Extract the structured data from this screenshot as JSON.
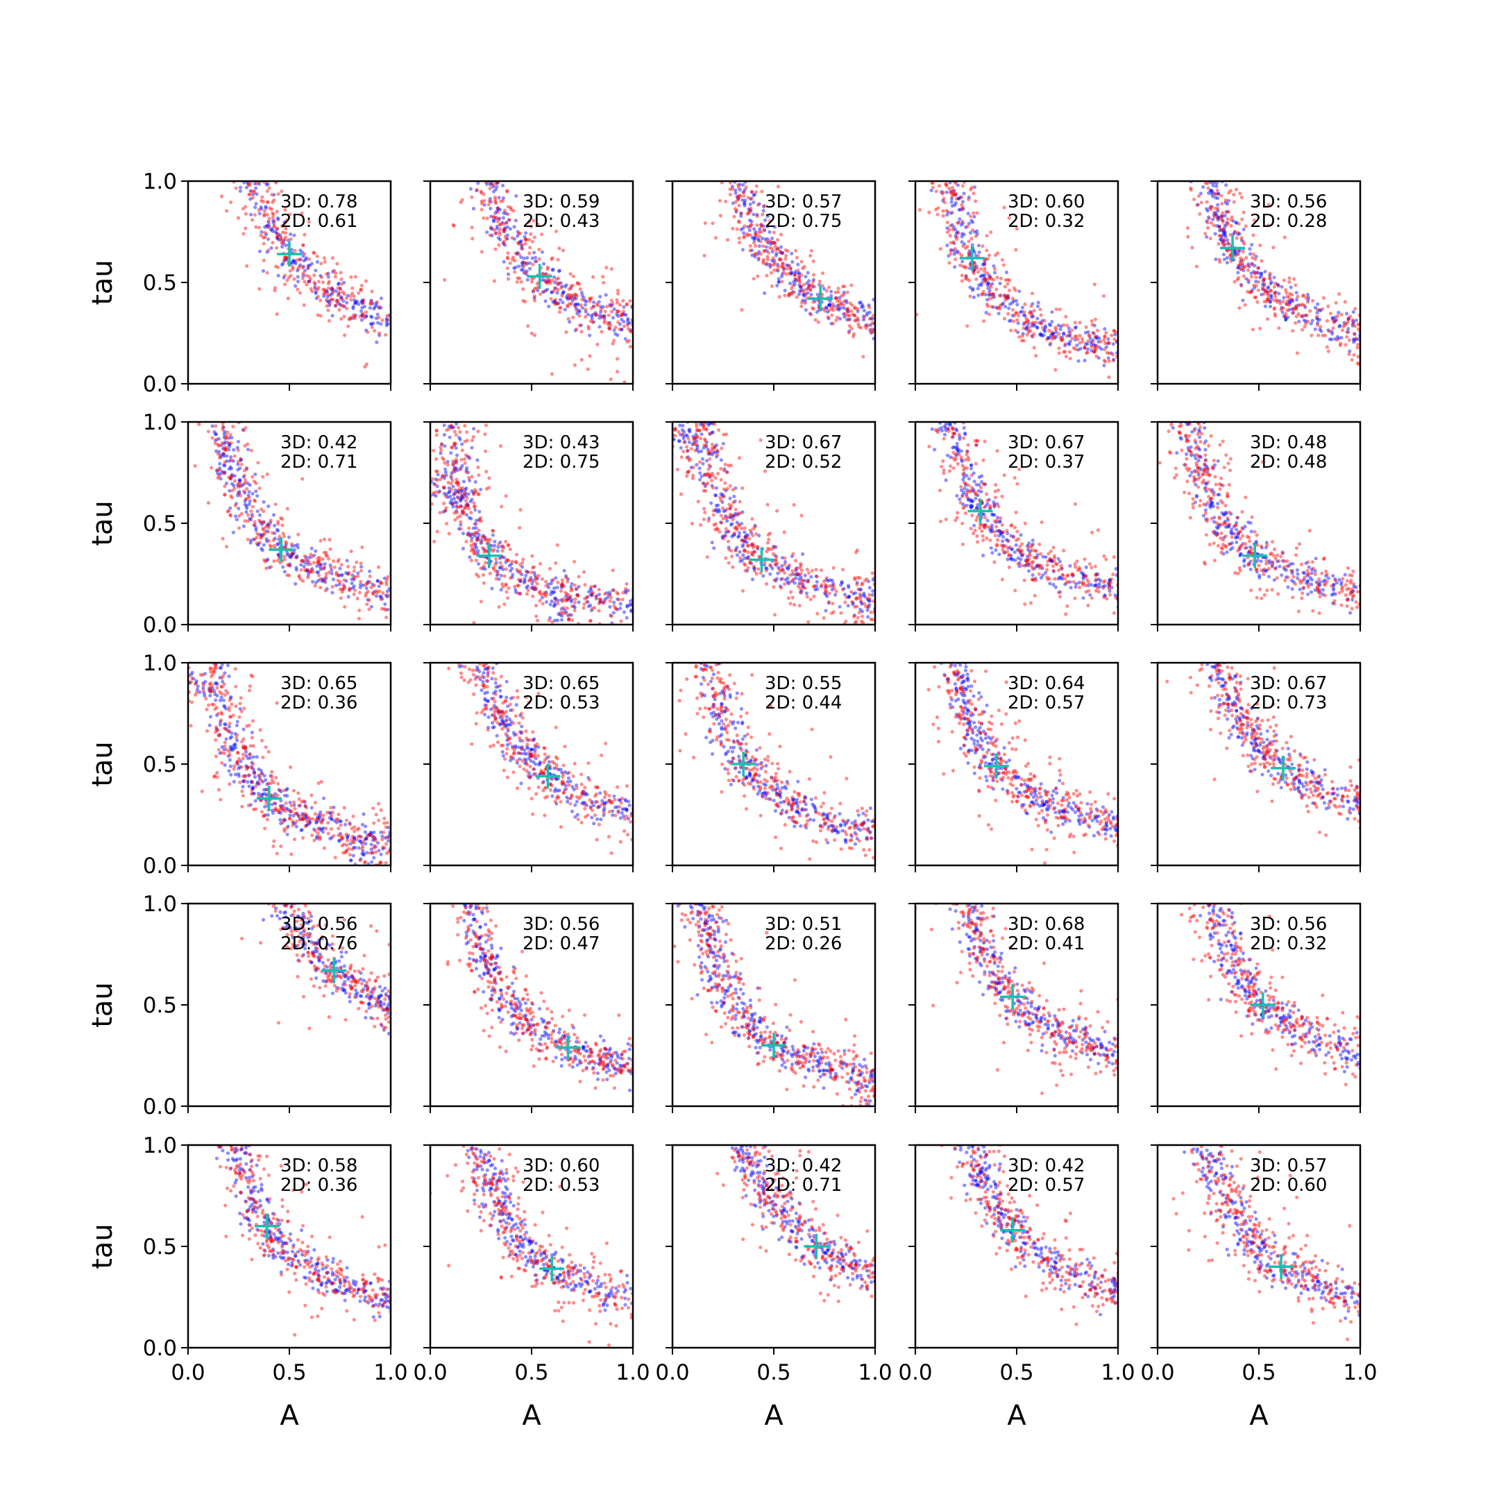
{
  "chart_data": {
    "type": "scatter",
    "layout": {
      "rows": 5,
      "cols": 5
    },
    "xlabel": "A",
    "ylabel": "tau",
    "xlim": [
      0,
      1
    ],
    "ylim": [
      0,
      1
    ],
    "xticks": [
      "0.0",
      "0.5",
      "1.0"
    ],
    "yticks": [
      "0.0",
      "0.5",
      "1.0"
    ],
    "grid": false,
    "colors": {
      "series_a": "#0000ff",
      "series_b": "#ff0000",
      "marker": "#17bfb0"
    },
    "panels": [
      {
        "label_3d": "3D: 0.78",
        "label_2d": "2D: 0.61",
        "marker": {
          "A": 0.5,
          "tau": 0.64
        }
      },
      {
        "label_3d": "3D: 0.59",
        "label_2d": "2D: 0.43",
        "marker": {
          "A": 0.54,
          "tau": 0.53
        }
      },
      {
        "label_3d": "3D: 0.57",
        "label_2d": "2D: 0.75",
        "marker": {
          "A": 0.73,
          "tau": 0.42
        }
      },
      {
        "label_3d": "3D: 0.60",
        "label_2d": "2D: 0.32",
        "marker": {
          "A": 0.28,
          "tau": 0.62
        }
      },
      {
        "label_3d": "3D: 0.56",
        "label_2d": "2D: 0.28",
        "marker": {
          "A": 0.37,
          "tau": 0.67
        }
      },
      {
        "label_3d": "3D: 0.42",
        "label_2d": "2D: 0.71",
        "marker": {
          "A": 0.46,
          "tau": 0.37
        }
      },
      {
        "label_3d": "3D: 0.43",
        "label_2d": "2D: 0.75",
        "marker": {
          "A": 0.29,
          "tau": 0.34
        }
      },
      {
        "label_3d": "3D: 0.67",
        "label_2d": "2D: 0.52",
        "marker": {
          "A": 0.44,
          "tau": 0.32
        }
      },
      {
        "label_3d": "3D: 0.67",
        "label_2d": "2D: 0.37",
        "marker": {
          "A": 0.32,
          "tau": 0.56
        }
      },
      {
        "label_3d": "3D: 0.48",
        "label_2d": "2D: 0.48",
        "marker": {
          "A": 0.48,
          "tau": 0.34
        }
      },
      {
        "label_3d": "3D: 0.65",
        "label_2d": "2D: 0.36",
        "marker": {
          "A": 0.4,
          "tau": 0.33
        }
      },
      {
        "label_3d": "3D: 0.65",
        "label_2d": "2D: 0.53",
        "marker": {
          "A": 0.58,
          "tau": 0.44
        }
      },
      {
        "label_3d": "3D: 0.55",
        "label_2d": "2D: 0.44",
        "marker": {
          "A": 0.35,
          "tau": 0.5
        }
      },
      {
        "label_3d": "3D: 0.64",
        "label_2d": "2D: 0.57",
        "marker": {
          "A": 0.4,
          "tau": 0.49
        }
      },
      {
        "label_3d": "3D: 0.67",
        "label_2d": "2D: 0.73",
        "marker": {
          "A": 0.62,
          "tau": 0.48
        }
      },
      {
        "label_3d": "3D: 0.56",
        "label_2d": "2D: 0.76",
        "marker": {
          "A": 0.72,
          "tau": 0.67
        }
      },
      {
        "label_3d": "3D: 0.56",
        "label_2d": "2D: 0.47",
        "marker": {
          "A": 0.68,
          "tau": 0.29
        }
      },
      {
        "label_3d": "3D: 0.51",
        "label_2d": "2D: 0.26",
        "marker": {
          "A": 0.5,
          "tau": 0.3
        }
      },
      {
        "label_3d": "3D: 0.68",
        "label_2d": "2D: 0.41",
        "marker": {
          "A": 0.48,
          "tau": 0.54
        }
      },
      {
        "label_3d": "3D: 0.56",
        "label_2d": "2D: 0.32",
        "marker": {
          "A": 0.52,
          "tau": 0.5
        }
      },
      {
        "label_3d": "3D: 0.58",
        "label_2d": "2D: 0.36",
        "marker": {
          "A": 0.39,
          "tau": 0.6
        }
      },
      {
        "label_3d": "3D: 0.60",
        "label_2d": "2D: 0.53",
        "marker": {
          "A": 0.6,
          "tau": 0.39
        }
      },
      {
        "label_3d": "3D: 0.42",
        "label_2d": "2D: 0.71",
        "marker": {
          "A": 0.71,
          "tau": 0.5
        }
      },
      {
        "label_3d": "3D: 0.42",
        "label_2d": "2D: 0.57",
        "marker": {
          "A": 0.48,
          "tau": 0.58
        }
      },
      {
        "label_3d": "3D: 0.57",
        "label_2d": "2D: 0.60",
        "marker": {
          "A": 0.61,
          "tau": 0.4
        }
      }
    ]
  }
}
